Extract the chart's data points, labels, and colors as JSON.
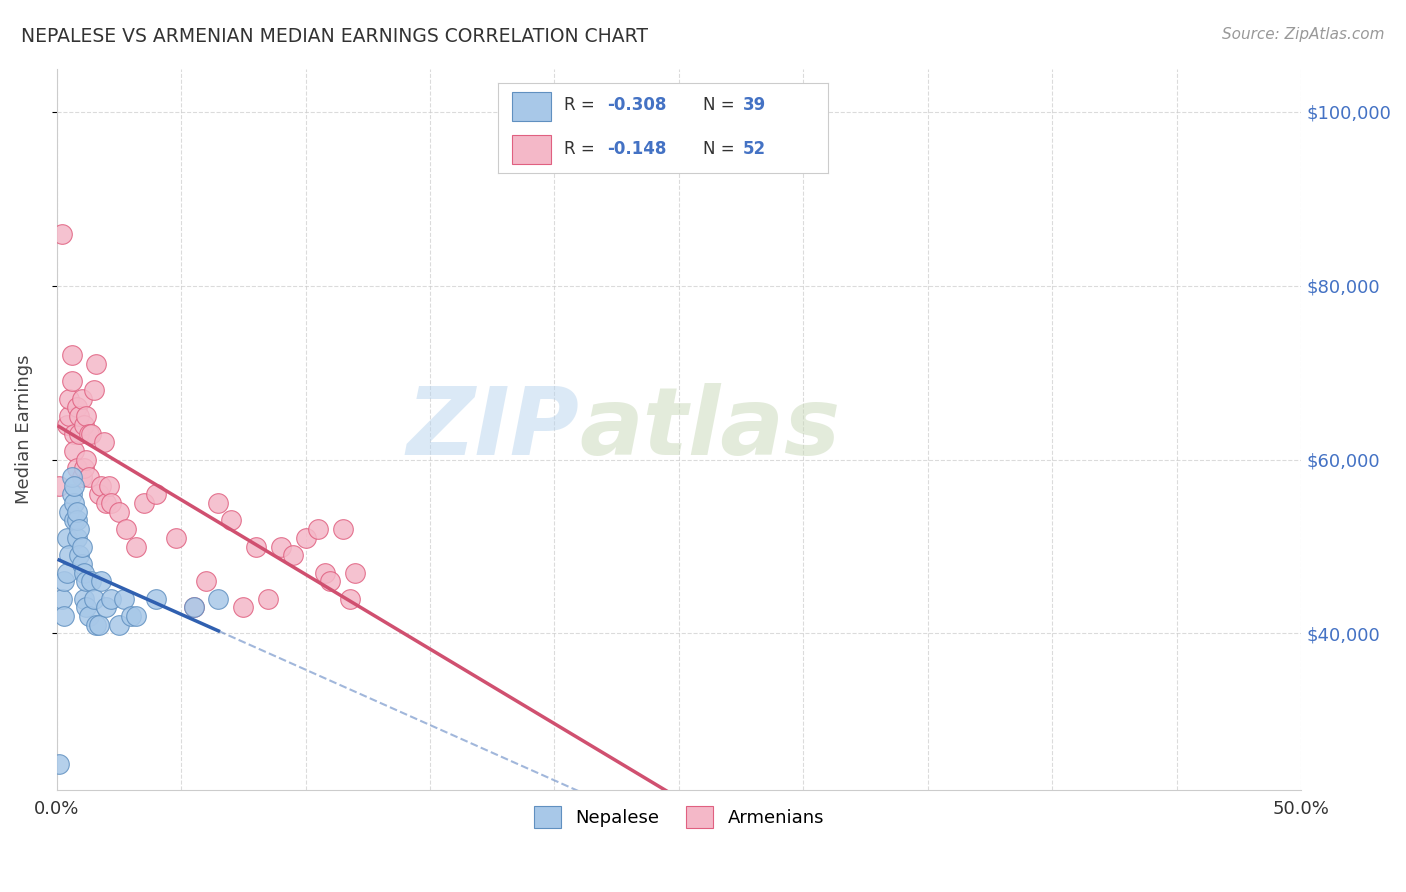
{
  "title": "NEPALESE VS ARMENIAN MEDIAN EARNINGS CORRELATION CHART",
  "source": "Source: ZipAtlas.com",
  "ylabel": "Median Earnings",
  "xlim": [
    0.0,
    0.5
  ],
  "ylim": [
    22000,
    105000
  ],
  "xticks": [
    0.0,
    0.05,
    0.1,
    0.15,
    0.2,
    0.25,
    0.3,
    0.35,
    0.4,
    0.45,
    0.5
  ],
  "ytick_values_right": [
    40000,
    60000,
    80000,
    100000
  ],
  "watermark_zip": "ZIP",
  "watermark_atlas": "atlas",
  "legend_r1_label": "R = ",
  "legend_r1_val": "-0.308",
  "legend_n1_label": "  N = ",
  "legend_n1_val": "39",
  "legend_r2_label": "R =  ",
  "legend_r2_val": "-0.148",
  "legend_n2_label": "  N = ",
  "legend_n2_val": "52",
  "nepalese_scatter_color": "#a8c8e8",
  "armenian_scatter_color": "#f4b8c8",
  "nepalese_edge_color": "#6090c0",
  "armenian_edge_color": "#e06080",
  "nepalese_line_color": "#3060b0",
  "armenian_line_color": "#d05070",
  "nepalese_x": [
    0.001,
    0.002,
    0.003,
    0.003,
    0.004,
    0.004,
    0.005,
    0.005,
    0.006,
    0.006,
    0.007,
    0.007,
    0.007,
    0.008,
    0.008,
    0.008,
    0.009,
    0.009,
    0.01,
    0.01,
    0.011,
    0.011,
    0.012,
    0.012,
    0.013,
    0.014,
    0.015,
    0.016,
    0.017,
    0.018,
    0.02,
    0.022,
    0.025,
    0.027,
    0.03,
    0.032,
    0.04,
    0.055,
    0.065
  ],
  "nepalese_y": [
    25000,
    44000,
    42000,
    46000,
    47000,
    51000,
    49000,
    54000,
    56000,
    58000,
    53000,
    55000,
    57000,
    51000,
    53000,
    54000,
    49000,
    52000,
    48000,
    50000,
    44000,
    47000,
    43000,
    46000,
    42000,
    46000,
    44000,
    41000,
    41000,
    46000,
    43000,
    44000,
    41000,
    44000,
    42000,
    42000,
    44000,
    43000,
    44000
  ],
  "armenian_x": [
    0.001,
    0.002,
    0.004,
    0.005,
    0.005,
    0.006,
    0.006,
    0.007,
    0.007,
    0.008,
    0.008,
    0.009,
    0.009,
    0.01,
    0.01,
    0.011,
    0.011,
    0.012,
    0.012,
    0.013,
    0.013,
    0.014,
    0.015,
    0.016,
    0.017,
    0.018,
    0.019,
    0.02,
    0.021,
    0.022,
    0.025,
    0.028,
    0.032,
    0.035,
    0.04,
    0.048,
    0.055,
    0.06,
    0.065,
    0.07,
    0.075,
    0.08,
    0.085,
    0.09,
    0.095,
    0.1,
    0.105,
    0.108,
    0.11,
    0.115,
    0.118,
    0.12
  ],
  "armenian_y": [
    57000,
    86000,
    64000,
    65000,
    67000,
    69000,
    72000,
    63000,
    61000,
    59000,
    66000,
    63000,
    65000,
    67000,
    58000,
    59000,
    64000,
    65000,
    60000,
    63000,
    58000,
    63000,
    68000,
    71000,
    56000,
    57000,
    62000,
    55000,
    57000,
    55000,
    54000,
    52000,
    50000,
    55000,
    56000,
    51000,
    43000,
    46000,
    55000,
    53000,
    43000,
    50000,
    44000,
    50000,
    49000,
    51000,
    52000,
    47000,
    46000,
    52000,
    44000,
    47000
  ],
  "background_color": "#ffffff",
  "grid_color": "#cccccc"
}
